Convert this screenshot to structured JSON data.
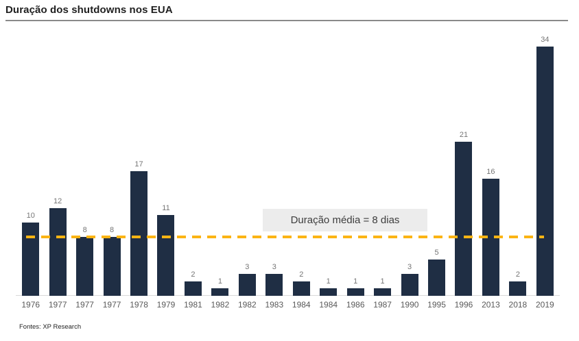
{
  "title": "Duração dos shutdowns nos EUA",
  "source": "Fontes: XP Research",
  "annotation": {
    "label": "Duração média = 8 dias",
    "value": 8
  },
  "colors": {
    "bar": "#1f2e44",
    "dashed_line": "#fbb414",
    "annotation_bg": "#ececec",
    "annotation_text": "#3d3d3d",
    "value_label": "#757575",
    "axis_label": "#595959",
    "axis_line": "#d9d9d9",
    "title_text": "#1f1f1f",
    "title_rule": "#8a8a8a"
  },
  "chart_data": {
    "type": "bar",
    "title": "Duração dos shutdowns nos EUA",
    "categories": [
      "1976",
      "1977",
      "1977",
      "1977",
      "1978",
      "1979",
      "1981",
      "1982",
      "1982",
      "1983",
      "1984",
      "1984",
      "1986",
      "1987",
      "1990",
      "1995",
      "1996",
      "2013",
      "2018",
      "2019"
    ],
    "values": [
      10,
      12,
      8,
      8,
      17,
      11,
      2,
      1,
      3,
      3,
      2,
      1,
      1,
      1,
      3,
      5,
      21,
      16,
      2,
      34
    ],
    "xlabel": "",
    "ylabel": "",
    "ylim": [
      0,
      34
    ],
    "grid": false,
    "legend": false,
    "data_labels": true,
    "mean_line": {
      "value": 8,
      "label": "Duração média = 8 dias",
      "style": "dashed",
      "color": "#fbb414"
    }
  }
}
